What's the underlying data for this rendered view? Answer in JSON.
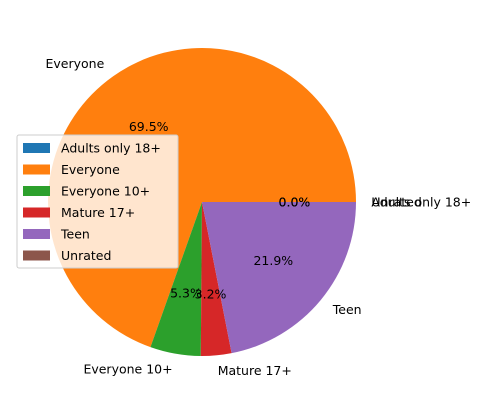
{
  "chart_data": {
    "type": "pie",
    "title": "",
    "labels": [
      "Adults only 18+",
      "Everyone",
      "Everyone 10+",
      "Mature 17+",
      "Teen",
      "Unrated"
    ],
    "values": [
      0.0,
      69.5,
      5.3,
      3.2,
      21.9,
      0.0
    ],
    "value_labels": [
      "0.0%",
      "69.5%",
      "5.3%",
      "3.2%",
      "21.9%",
      "0.0%"
    ],
    "colors": [
      "#1f77b4",
      "#ff7f0e",
      "#2ca02c",
      "#d62728",
      "#9467bd",
      "#8c564b"
    ],
    "start_angle_deg": 0,
    "direction": "counterclockwise",
    "legend": {
      "placement": "center-left",
      "entries": [
        "Adults only 18+",
        "Everyone",
        "Everyone 10+",
        "Mature 17+",
        "Teen",
        "Unrated"
      ]
    }
  }
}
